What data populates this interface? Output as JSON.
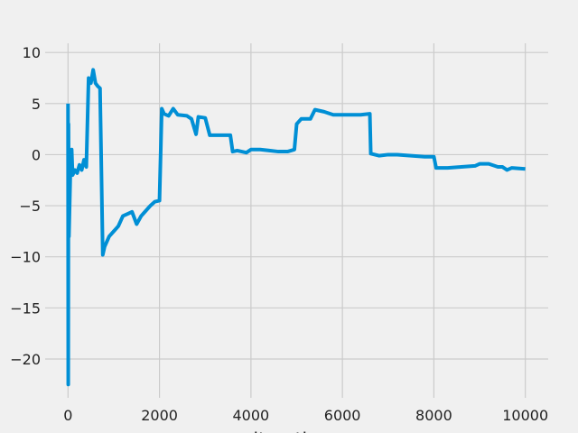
{
  "chart_data": {
    "type": "line",
    "x_label": "iterations",
    "x": [
      0,
      5,
      10,
      20,
      50,
      80,
      100,
      150,
      200,
      250,
      300,
      350,
      400,
      450,
      500,
      550,
      600,
      650,
      700,
      760,
      800,
      900,
      1000,
      1100,
      1200,
      1300,
      1400,
      1500,
      1600,
      1700,
      1800,
      1900,
      2000,
      2050,
      2100,
      2200,
      2300,
      2400,
      2600,
      2700,
      2800,
      2850,
      3000,
      3100,
      3300,
      3550,
      3600,
      3700,
      3900,
      4000,
      4200,
      4400,
      4600,
      4800,
      4950,
      5000,
      5100,
      5300,
      5400,
      5600,
      5800,
      6000,
      6200,
      6400,
      6600,
      6620,
      6800,
      7000,
      7200,
      7500,
      7800,
      8000,
      8050,
      8300,
      8600,
      8900,
      9000,
      9200,
      9400,
      9500,
      9600,
      9700,
      10000
    ],
    "series": [
      {
        "color": "#008fd5",
        "values": [
          5,
          -22.5,
          3,
          -8,
          -2,
          0.5,
          -2,
          -1.5,
          -1.8,
          -1,
          -1.5,
          -0.5,
          -1.2,
          7.5,
          7,
          8.3,
          7,
          6.7,
          6.5,
          -9.8,
          -9,
          -8,
          -7.5,
          -7,
          -6,
          -5.8,
          -5.6,
          -6.8,
          -6,
          -5.5,
          -5,
          -4.6,
          -4.5,
          4.5,
          4,
          3.8,
          4.5,
          3.9,
          3.8,
          3.5,
          2,
          3.7,
          3.6,
          1.9,
          1.9,
          1.9,
          0.3,
          0.4,
          0.2,
          0.5,
          0.5,
          0.4,
          0.3,
          0.3,
          0.5,
          3,
          3.5,
          3.5,
          4.4,
          4.2,
          3.9,
          3.9,
          3.9,
          3.9,
          4,
          0.1,
          -0.1,
          0,
          0,
          -0.1,
          -0.2,
          -0.2,
          -1.3,
          -1.3,
          -1.2,
          -1.1,
          -0.9,
          -0.9,
          -1.2,
          -1.2,
          -1.5,
          -1.3,
          -1.4
        ]
      }
    ],
    "xlim": [
      -500,
      10500
    ],
    "ylim": [
      -23.8,
      10.9
    ],
    "xticks": [
      0,
      2000,
      4000,
      6000,
      8000,
      10000
    ],
    "yticks": [
      {
        "value": -20,
        "label": "−20"
      },
      {
        "value": -15,
        "label": "−15"
      },
      {
        "value": -10,
        "label": "−10"
      },
      {
        "value": -5,
        "label": "−5"
      },
      0,
      5,
      10
    ],
    "grid": true
  }
}
